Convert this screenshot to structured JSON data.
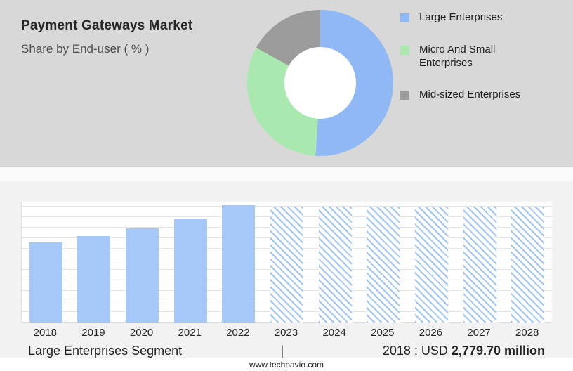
{
  "header": {
    "title": "Payment Gateways Market",
    "subtitle": "Share by End-user ( % )"
  },
  "chart_data": [
    {
      "type": "pie",
      "donut": true,
      "title": "Payment Gateways Market Share by End-user ( % )",
      "labels": [
        "Large Enterprises",
        "Micro And Small Enterprises",
        "Mid-sized Enterprises"
      ],
      "values": [
        51,
        32,
        17
      ],
      "colors": [
        "#8fb8f5",
        "#a9e8af",
        "#9b9b9b"
      ],
      "legend_position": "right"
    },
    {
      "type": "bar",
      "categories": [
        "2018",
        "2019",
        "2020",
        "2021",
        "2022",
        "2023",
        "2024",
        "2025",
        "2026",
        "2027",
        "2028"
      ],
      "values": [
        2779.7,
        3000,
        3280,
        3590,
        4070,
        4030,
        4030,
        4030,
        4030,
        4030,
        4030
      ],
      "actual_years": [
        "2018",
        "2019",
        "2020",
        "2021",
        "2022"
      ],
      "forecast_years": [
        "2023",
        "2024",
        "2025",
        "2026",
        "2027",
        "2028"
      ],
      "bar_color": "#a5c8f8",
      "forecast_style": "diagonal-hatch",
      "grid": true,
      "ylabel": "",
      "xlabel": ""
    }
  ],
  "caption": {
    "segment": "Large Enterprises Segment",
    "separator": "|",
    "prefix": "2018 : USD",
    "value": "2,779.70 million"
  },
  "footer": {
    "website": "www.technavio.com"
  }
}
